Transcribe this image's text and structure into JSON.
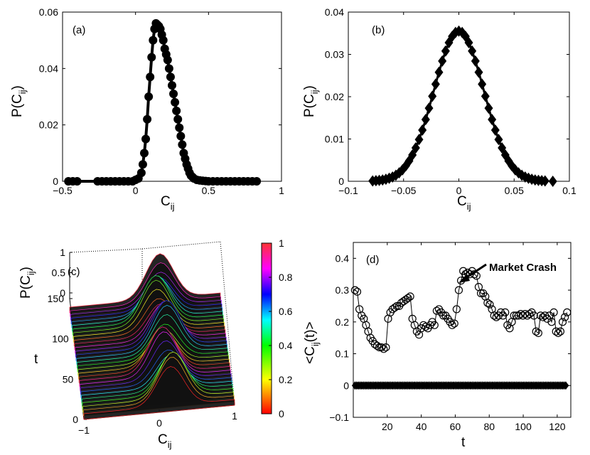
{
  "chart_data": [
    {
      "id": "a",
      "type": "line",
      "panel_label": "(a)",
      "xlabel": {
        "base": "C",
        "sub": "ij"
      },
      "ylabel": {
        "prefix": "P(C",
        "sub": "ij",
        "suffix": ")"
      },
      "xlim": [
        -0.5,
        1
      ],
      "ylim": [
        0,
        0.06
      ],
      "xticks": [
        {
          "v": -0.5,
          "label": "−0.5"
        },
        {
          "v": 0,
          "label": "0"
        },
        {
          "v": 0.5,
          "label": "0.5"
        },
        {
          "v": 1,
          "label": "1"
        }
      ],
      "yticks": [
        {
          "v": 0,
          "label": "0"
        },
        {
          "v": 0.02,
          "label": "0.02"
        },
        {
          "v": 0.04,
          "label": "0.04"
        },
        {
          "v": 0.06,
          "label": "0.06"
        }
      ],
      "marker": "circle",
      "series": [
        {
          "name": "P(C_ij)",
          "x": [
            -0.46,
            -0.43,
            -0.4,
            -0.26,
            -0.23,
            -0.2,
            -0.17,
            -0.14,
            -0.11,
            -0.08,
            -0.05,
            -0.02,
            0.0,
            0.02,
            0.04,
            0.05,
            0.06,
            0.07,
            0.08,
            0.09,
            0.1,
            0.11,
            0.12,
            0.13,
            0.14,
            0.15,
            0.16,
            0.17,
            0.18,
            0.19,
            0.2,
            0.21,
            0.22,
            0.23,
            0.24,
            0.25,
            0.26,
            0.27,
            0.28,
            0.29,
            0.3,
            0.31,
            0.32,
            0.33,
            0.34,
            0.35,
            0.36,
            0.37,
            0.38,
            0.39,
            0.4,
            0.42,
            0.44,
            0.46,
            0.48,
            0.5,
            0.53,
            0.56,
            0.59,
            0.62,
            0.65,
            0.68,
            0.71,
            0.74,
            0.77,
            0.8,
            0.83
          ],
          "y": [
            0.0,
            0.0,
            0.0,
            0.0,
            0.0,
            0.0,
            0.0,
            0.0,
            0.0,
            0.0,
            0.0,
            0.0,
            0.0005,
            0.001,
            0.003,
            0.006,
            0.01,
            0.015,
            0.022,
            0.03,
            0.037,
            0.044,
            0.05,
            0.054,
            0.056,
            0.0555,
            0.055,
            0.054,
            0.052,
            0.05,
            0.047,
            0.045,
            0.043,
            0.04,
            0.037,
            0.034,
            0.031,
            0.028,
            0.025,
            0.022,
            0.019,
            0.016,
            0.013,
            0.01,
            0.008,
            0.006,
            0.0045,
            0.003,
            0.002,
            0.0015,
            0.001,
            0.0005,
            0.0003,
            0.0002,
            0.0001,
            0.0,
            0.0,
            0.0,
            0.0,
            0.0,
            0.0,
            0.0,
            0.0,
            0.0,
            0.0,
            0.0,
            0.0
          ]
        }
      ]
    },
    {
      "id": "b",
      "type": "line",
      "panel_label": "(b)",
      "xlabel": {
        "base": "C",
        "sub": "ij"
      },
      "ylabel": {
        "prefix": "P(C",
        "sub": "ij",
        "suffix": ")"
      },
      "xlim": [
        -0.1,
        0.1
      ],
      "ylim": [
        0,
        0.04
      ],
      "xticks": [
        {
          "v": -0.1,
          "label": "−0.1"
        },
        {
          "v": -0.05,
          "label": "−0.05"
        },
        {
          "v": 0,
          "label": "0"
        },
        {
          "v": 0.05,
          "label": "0.05"
        },
        {
          "v": 0.1,
          "label": "0.1"
        }
      ],
      "yticks": [
        {
          "v": 0,
          "label": "0"
        },
        {
          "v": 0.01,
          "label": "0.01"
        },
        {
          "v": 0.02,
          "label": "0.02"
        },
        {
          "v": 0.03,
          "label": "0.03"
        },
        {
          "v": 0.04,
          "label": "0.04"
        }
      ],
      "marker": "diamond",
      "gaussian": {
        "mean": 0,
        "sigma": 0.0225,
        "peak": 0.0355
      },
      "series": [
        {
          "name": "P(C_ij)",
          "x_start": -0.078,
          "x_end": 0.078,
          "x_step": 0.003,
          "extra_points": [
            [
              0.085,
              0.0
            ]
          ]
        }
      ]
    },
    {
      "id": "c",
      "type": "surface3d",
      "panel_label": "(c)",
      "xlabel": {
        "base": "C",
        "sub": "ij"
      },
      "ylabel": "t",
      "zlabel": {
        "prefix": "P(C",
        "sub": "ij",
        "suffix": ")"
      },
      "xlim": [
        -1,
        1
      ],
      "ylim": [
        0,
        150
      ],
      "zlim": [
        0,
        1
      ],
      "xticks": [
        {
          "v": -1,
          "label": "−1"
        },
        {
          "v": 0,
          "label": "0"
        },
        {
          "v": 1,
          "label": "1"
        }
      ],
      "yticks": [
        {
          "v": 0,
          "label": "0"
        },
        {
          "v": 50,
          "label": "50"
        },
        {
          "v": 100,
          "label": "100"
        },
        {
          "v": 150,
          "label": "150"
        }
      ],
      "zticks": [
        {
          "v": 0,
          "label": "0"
        },
        {
          "v": 0.5,
          "label": "0.5"
        },
        {
          "v": 1,
          "label": "1"
        }
      ],
      "colorbar": {
        "min": 0,
        "max": 1,
        "ticks": [
          {
            "v": 0,
            "label": "0"
          },
          {
            "v": 0.2,
            "label": "0.2"
          },
          {
            "v": 0.4,
            "label": "0.4"
          },
          {
            "v": 0.6,
            "label": "0.6"
          },
          {
            "v": 0.8,
            "label": "0.8"
          },
          {
            "v": 1,
            "label": "1"
          }
        ],
        "colors": [
          "#ff0000",
          "#ffff00",
          "#00ff00",
          "#00ffff",
          "#0000ff",
          "#ff00ff",
          "#ff3333"
        ]
      }
    },
    {
      "id": "d",
      "type": "line",
      "panel_label": "(d)",
      "xlabel": "t",
      "ylabel": {
        "prefix": "<C",
        "sub": "ij",
        "suffix": "(t)>"
      },
      "xlim": [
        0,
        128
      ],
      "ylim": [
        -0.1,
        0.45
      ],
      "xticks": [
        {
          "v": 20,
          "label": "20"
        },
        {
          "v": 40,
          "label": "40"
        },
        {
          "v": 60,
          "label": "60"
        },
        {
          "v": 80,
          "label": "80"
        },
        {
          "v": 100,
          "label": "100"
        },
        {
          "v": 120,
          "label": "120"
        }
      ],
      "yticks": [
        {
          "v": -0.1,
          "label": "−0.1"
        },
        {
          "v": 0,
          "label": "0"
        },
        {
          "v": 0.1,
          "label": "0.1"
        },
        {
          "v": 0.2,
          "label": "0.2"
        },
        {
          "v": 0.3,
          "label": "0.3"
        },
        {
          "v": 0.4,
          "label": "0.4"
        }
      ],
      "annotation": {
        "text": "Market Crash",
        "x": 61,
        "y": 0.365
      },
      "series": [
        {
          "name": "<C_ij(t)>",
          "marker": "circle",
          "x_start": 1,
          "y": [
            0.3,
            0.295,
            0.24,
            0.22,
            0.21,
            0.19,
            0.17,
            0.15,
            0.14,
            0.13,
            0.125,
            0.12,
            0.12,
            0.115,
            0.12,
            0.21,
            0.23,
            0.24,
            0.245,
            0.25,
            0.25,
            0.26,
            0.265,
            0.27,
            0.275,
            0.28,
            0.21,
            0.19,
            0.17,
            0.16,
            0.18,
            0.19,
            0.185,
            0.18,
            0.19,
            0.2,
            0.19,
            0.235,
            0.24,
            0.23,
            0.22,
            0.22,
            0.21,
            0.2,
            0.19,
            0.195,
            0.24,
            0.3,
            0.33,
            0.36,
            0.35,
            0.355,
            0.35,
            0.36,
            0.35,
            0.345,
            0.31,
            0.29,
            0.29,
            0.28,
            0.26,
            0.255,
            0.24,
            0.22,
            0.215,
            0.22,
            0.23,
            0.22,
            0.23,
            0.19,
            0.18,
            0.2,
            0.22,
            0.22,
            0.22,
            0.225,
            0.22,
            0.225,
            0.22,
            0.225,
            0.23,
            0.22,
            0.17,
            0.165,
            0.22,
            0.215,
            0.22,
            0.21,
            0.22,
            0.2,
            0.23,
            0.17,
            0.165,
            0.17,
            0.2,
            0.215,
            0.23
          ],
          "x_step": 1.3
        },
        {
          "name": "zero baseline",
          "marker": "diamond",
          "x_start": 1,
          "x_end": 125,
          "x_step": 1,
          "y_const": 0
        }
      ]
    }
  ]
}
